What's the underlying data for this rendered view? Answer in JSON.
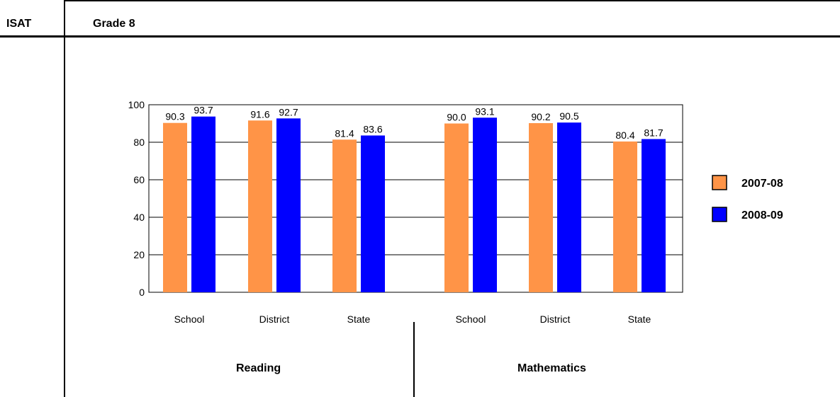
{
  "header": {
    "left": "ISAT",
    "title": "Grade 8"
  },
  "chart_data": {
    "type": "bar",
    "title": "",
    "xlabel": "",
    "ylabel": "",
    "ylim": [
      0,
      100
    ],
    "yticks": [
      0,
      20,
      40,
      60,
      80,
      100
    ],
    "grid": true,
    "legend_position": "right",
    "groups": [
      "Reading",
      "Mathematics"
    ],
    "categories": [
      "School",
      "District",
      "State",
      "School",
      "District",
      "State"
    ],
    "series": [
      {
        "name": "2007-08",
        "color": "#FF9447",
        "values": [
          90.3,
          91.6,
          81.4,
          90.0,
          90.2,
          80.4
        ],
        "labels": [
          "90.3",
          "91.6",
          "81.4",
          "90.0",
          "90.2",
          "80.4"
        ]
      },
      {
        "name": "2008-09",
        "color": "#0000FF",
        "values": [
          93.7,
          92.7,
          83.6,
          93.1,
          90.5,
          81.7
        ],
        "labels": [
          "93.7",
          "92.7",
          "83.6",
          "93.1",
          "90.5",
          "81.7"
        ]
      }
    ]
  }
}
